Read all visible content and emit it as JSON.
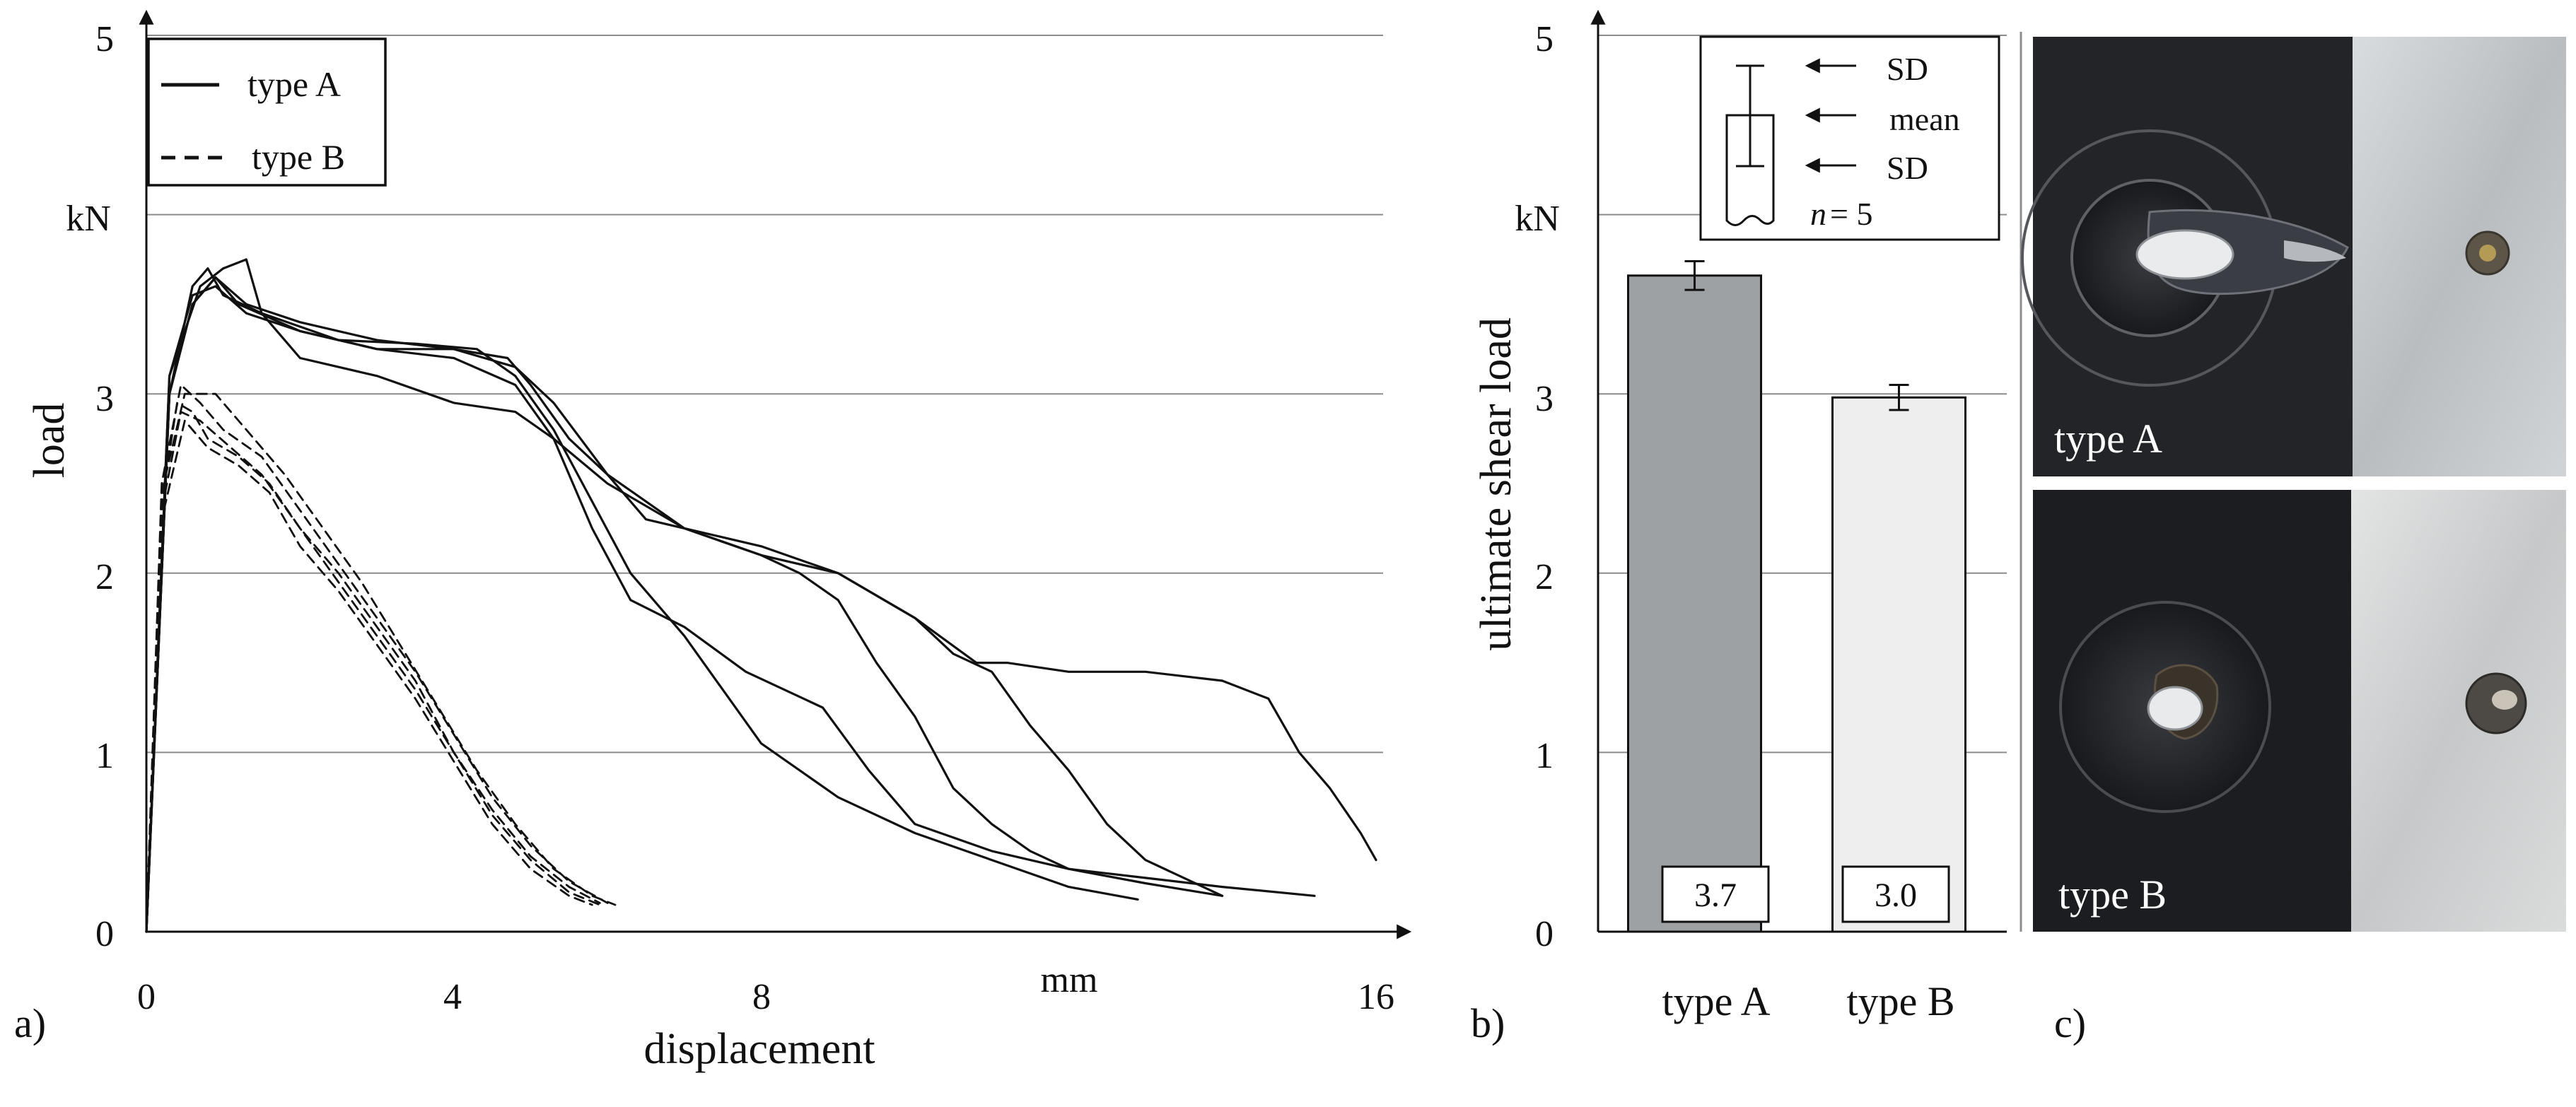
{
  "figure": {
    "panel_labels": [
      "a)",
      "b)",
      "c)"
    ]
  },
  "colors": {
    "bar_type_a": "#9ea1a3",
    "bar_type_b": "#eeeeee",
    "grid": "#8c8c8c",
    "ink": "#111111"
  },
  "chart_data": [
    {
      "id": "load-displacement",
      "type": "line",
      "title": "",
      "xlabel": "displacement",
      "ylabel": "load",
      "x_unit": "mm",
      "y_unit": "kN",
      "xlim": [
        0,
        16.5
      ],
      "ylim": [
        0,
        5
      ],
      "x_ticks": [
        "0",
        "4",
        "8",
        "16"
      ],
      "y_ticks": [
        "0",
        "1",
        "2",
        "3",
        "5"
      ],
      "legend": {
        "position": "top-left",
        "entries": [
          "type A",
          "type B"
        ]
      },
      "series": [
        {
          "name": "type A",
          "style": "solid",
          "points": [
            [
              0,
              0
            ],
            [
              0.3,
              3.0
            ],
            [
              0.6,
              3.6
            ],
            [
              0.8,
              3.7
            ],
            [
              1.0,
              3.55
            ],
            [
              1.5,
              3.45
            ],
            [
              2.5,
              3.3
            ],
            [
              3.5,
              3.28
            ],
            [
              4.3,
              3.25
            ],
            [
              4.8,
              3.1
            ],
            [
              5.3,
              2.8
            ],
            [
              5.8,
              2.4
            ],
            [
              6.3,
              2.0
            ],
            [
              7.0,
              1.65
            ],
            [
              8.0,
              1.05
            ],
            [
              9.0,
              0.75
            ],
            [
              10.0,
              0.55
            ],
            [
              11.0,
              0.4
            ],
            [
              12.0,
              0.25
            ],
            [
              12.9,
              0.18
            ]
          ]
        },
        {
          "name": "type A",
          "style": "solid",
          "points": [
            [
              0,
              0
            ],
            [
              0.3,
              3.0
            ],
            [
              0.6,
              3.5
            ],
            [
              0.9,
              3.65
            ],
            [
              1.2,
              3.5
            ],
            [
              2.0,
              3.35
            ],
            [
              3.0,
              3.25
            ],
            [
              4.0,
              3.2
            ],
            [
              4.8,
              3.05
            ],
            [
              5.3,
              2.75
            ],
            [
              5.8,
              2.25
            ],
            [
              6.3,
              1.85
            ],
            [
              7.0,
              1.7
            ],
            [
              7.8,
              1.45
            ],
            [
              8.8,
              1.25
            ],
            [
              9.4,
              0.9
            ],
            [
              10.0,
              0.6
            ],
            [
              11.0,
              0.45
            ],
            [
              12.0,
              0.35
            ],
            [
              13.0,
              0.27
            ],
            [
              14.0,
              0.2
            ]
          ]
        },
        {
          "name": "type A",
          "style": "solid",
          "points": [
            [
              0,
              0
            ],
            [
              0.3,
              3.1
            ],
            [
              0.7,
              3.6
            ],
            [
              1.0,
              3.7
            ],
            [
              1.3,
              3.75
            ],
            [
              1.5,
              3.45
            ],
            [
              2.0,
              3.2
            ],
            [
              3.0,
              3.1
            ],
            [
              4.0,
              2.95
            ],
            [
              4.8,
              2.9
            ],
            [
              5.3,
              2.75
            ],
            [
              6.0,
              2.5
            ],
            [
              7.0,
              2.25
            ],
            [
              8.0,
              2.1
            ],
            [
              8.5,
              2.0
            ],
            [
              9.0,
              1.85
            ],
            [
              9.5,
              1.5
            ],
            [
              10.0,
              1.2
            ],
            [
              10.5,
              0.8
            ],
            [
              11.0,
              0.6
            ],
            [
              11.5,
              0.45
            ],
            [
              12.0,
              0.35
            ],
            [
              13.0,
              0.3
            ],
            [
              14.0,
              0.25
            ],
            [
              15.2,
              0.2
            ]
          ]
        },
        {
          "name": "type A",
          "style": "solid",
          "points": [
            [
              0,
              0
            ],
            [
              0.3,
              3.1
            ],
            [
              0.6,
              3.55
            ],
            [
              0.9,
              3.6
            ],
            [
              1.3,
              3.45
            ],
            [
              2.0,
              3.35
            ],
            [
              3.0,
              3.25
            ],
            [
              4.0,
              3.25
            ],
            [
              4.7,
              3.2
            ],
            [
              5.0,
              3.05
            ],
            [
              5.5,
              2.75
            ],
            [
              6.0,
              2.55
            ],
            [
              6.5,
              2.3
            ],
            [
              7.0,
              2.25
            ],
            [
              7.5,
              2.2
            ],
            [
              8.0,
              2.15
            ],
            [
              9.0,
              2.0
            ],
            [
              10.0,
              1.75
            ],
            [
              10.5,
              1.55
            ],
            [
              11.0,
              1.45
            ],
            [
              11.5,
              1.15
            ],
            [
              12.0,
              0.9
            ],
            [
              12.5,
              0.6
            ],
            [
              13.0,
              0.4
            ],
            [
              14.0,
              0.2
            ]
          ]
        },
        {
          "name": "type A",
          "style": "solid",
          "points": [
            [
              0,
              0
            ],
            [
              0.3,
              3.0
            ],
            [
              0.6,
              3.5
            ],
            [
              0.9,
              3.65
            ],
            [
              1.3,
              3.5
            ],
            [
              2.0,
              3.4
            ],
            [
              3.0,
              3.3
            ],
            [
              4.0,
              3.25
            ],
            [
              4.8,
              3.15
            ],
            [
              5.3,
              2.95
            ],
            [
              6.0,
              2.55
            ],
            [
              7.0,
              2.25
            ],
            [
              8.0,
              2.1
            ],
            [
              9.0,
              2.0
            ],
            [
              10.0,
              1.75
            ],
            [
              10.8,
              1.5
            ],
            [
              11.2,
              1.5
            ],
            [
              12.0,
              1.45
            ],
            [
              13.0,
              1.45
            ],
            [
              14.0,
              1.4
            ],
            [
              14.6,
              1.3
            ],
            [
              15.0,
              1.0
            ],
            [
              15.4,
              0.8
            ],
            [
              15.8,
              0.55
            ],
            [
              16.0,
              0.4
            ]
          ]
        },
        {
          "name": "type B",
          "style": "dashed",
          "points": [
            [
              0,
              0
            ],
            [
              0.2,
              2.4
            ],
            [
              0.4,
              2.95
            ],
            [
              0.6,
              2.9
            ],
            [
              0.8,
              2.75
            ],
            [
              1.2,
              2.65
            ],
            [
              1.6,
              2.5
            ],
            [
              2.0,
              2.25
            ],
            [
              2.5,
              2.0
            ],
            [
              3.0,
              1.7
            ],
            [
              3.5,
              1.4
            ],
            [
              4.0,
              1.0
            ],
            [
              4.5,
              0.65
            ],
            [
              5.0,
              0.4
            ],
            [
              5.5,
              0.22
            ],
            [
              5.9,
              0.15
            ]
          ]
        },
        {
          "name": "type B",
          "style": "dashed",
          "points": [
            [
              0,
              0
            ],
            [
              0.2,
              2.5
            ],
            [
              0.45,
              3.05
            ],
            [
              0.7,
              2.95
            ],
            [
              1.0,
              2.8
            ],
            [
              1.5,
              2.65
            ],
            [
              2.0,
              2.35
            ],
            [
              2.5,
              2.05
            ],
            [
              3.0,
              1.75
            ],
            [
              3.5,
              1.45
            ],
            [
              4.0,
              1.1
            ],
            [
              4.5,
              0.75
            ],
            [
              5.0,
              0.48
            ],
            [
              5.5,
              0.28
            ],
            [
              6.0,
              0.16
            ]
          ]
        },
        {
          "name": "type B",
          "style": "dashed",
          "points": [
            [
              0,
              0
            ],
            [
              0.2,
              2.3
            ],
            [
              0.5,
              2.85
            ],
            [
              0.8,
              2.7
            ],
            [
              1.2,
              2.6
            ],
            [
              1.6,
              2.45
            ],
            [
              2.0,
              2.15
            ],
            [
              2.5,
              1.9
            ],
            [
              3.0,
              1.6
            ],
            [
              3.5,
              1.3
            ],
            [
              4.0,
              0.95
            ],
            [
              4.5,
              0.6
            ],
            [
              5.0,
              0.35
            ],
            [
              5.5,
              0.2
            ],
            [
              5.8,
              0.15
            ]
          ]
        },
        {
          "name": "type B",
          "style": "dashed",
          "points": [
            [
              0,
              0
            ],
            [
              0.2,
              2.45
            ],
            [
              0.5,
              3.0
            ],
            [
              0.9,
              3.0
            ],
            [
              1.3,
              2.8
            ],
            [
              1.8,
              2.55
            ],
            [
              2.3,
              2.25
            ],
            [
              2.8,
              1.95
            ],
            [
              3.3,
              1.6
            ],
            [
              3.8,
              1.25
            ],
            [
              4.3,
              0.9
            ],
            [
              4.8,
              0.6
            ],
            [
              5.3,
              0.35
            ],
            [
              5.8,
              0.2
            ],
            [
              6.1,
              0.15
            ]
          ]
        },
        {
          "name": "type B",
          "style": "dashed",
          "points": [
            [
              0,
              0
            ],
            [
              0.2,
              2.35
            ],
            [
              0.45,
              2.9
            ],
            [
              0.7,
              2.85
            ],
            [
              1.1,
              2.7
            ],
            [
              1.5,
              2.55
            ],
            [
              2.0,
              2.25
            ],
            [
              2.5,
              1.95
            ],
            [
              3.0,
              1.65
            ],
            [
              3.5,
              1.35
            ],
            [
              4.0,
              1.0
            ],
            [
              4.5,
              0.68
            ],
            [
              5.0,
              0.42
            ],
            [
              5.5,
              0.25
            ],
            [
              5.9,
              0.16
            ]
          ]
        }
      ]
    },
    {
      "id": "ultimate-shear-load",
      "type": "bar",
      "title": "",
      "xlabel": "",
      "ylabel": "ultimate shear load",
      "y_unit": "kN",
      "ylim": [
        0,
        5
      ],
      "y_ticks": [
        "0",
        "1",
        "2",
        "3",
        "5"
      ],
      "categories": [
        "type A",
        "type B"
      ],
      "values": [
        3.66,
        2.98
      ],
      "sd": [
        0.08,
        0.07
      ],
      "value_labels": [
        "3.7",
        "3.0"
      ],
      "legend": {
        "position": "top-right",
        "entries": [
          "SD",
          "mean",
          "SD"
        ],
        "n_label": "n",
        "n_value": "= 5"
      }
    }
  ],
  "photos": [
    {
      "label": "type A"
    },
    {
      "label": "type B"
    }
  ]
}
